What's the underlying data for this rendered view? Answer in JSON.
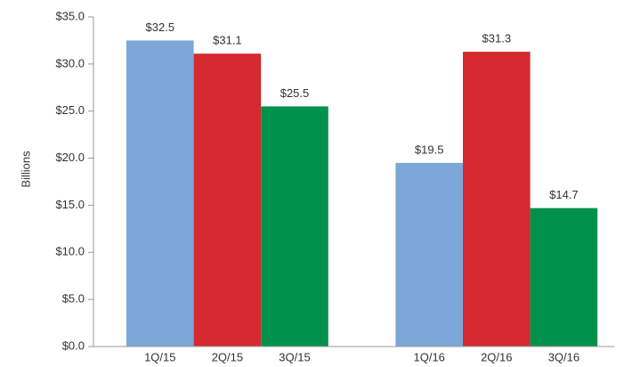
{
  "chart_data": {
    "type": "bar",
    "y_label": "Billions",
    "categories": [
      "1Q/15",
      "2Q/15",
      "3Q/15",
      "1Q/16",
      "2Q/16",
      "3Q/16"
    ],
    "values": [
      32.5,
      31.1,
      25.5,
      19.5,
      31.3,
      14.7
    ],
    "value_labels": [
      "$32.5",
      "$31.1",
      "$25.5",
      "$19.5",
      "$31.3",
      "$14.7"
    ],
    "colors": [
      "#7ba7d9",
      "#d42a30",
      "#00924a",
      "#7ba7d9",
      "#d42a30",
      "#00924a"
    ],
    "ylim": [
      0,
      35
    ],
    "yticks": [
      {
        "value": 0,
        "label": "$0.0"
      },
      {
        "value": 5,
        "label": "$5.0"
      },
      {
        "value": 10,
        "label": "$10.0"
      },
      {
        "value": 15,
        "label": "$15.0"
      },
      {
        "value": 20,
        "label": "$20.0"
      },
      {
        "value": 25,
        "label": "$25.0"
      },
      {
        "value": 30,
        "label": "$30.0"
      },
      {
        "value": 35,
        "label": "$35.0"
      }
    ],
    "grid": false
  }
}
